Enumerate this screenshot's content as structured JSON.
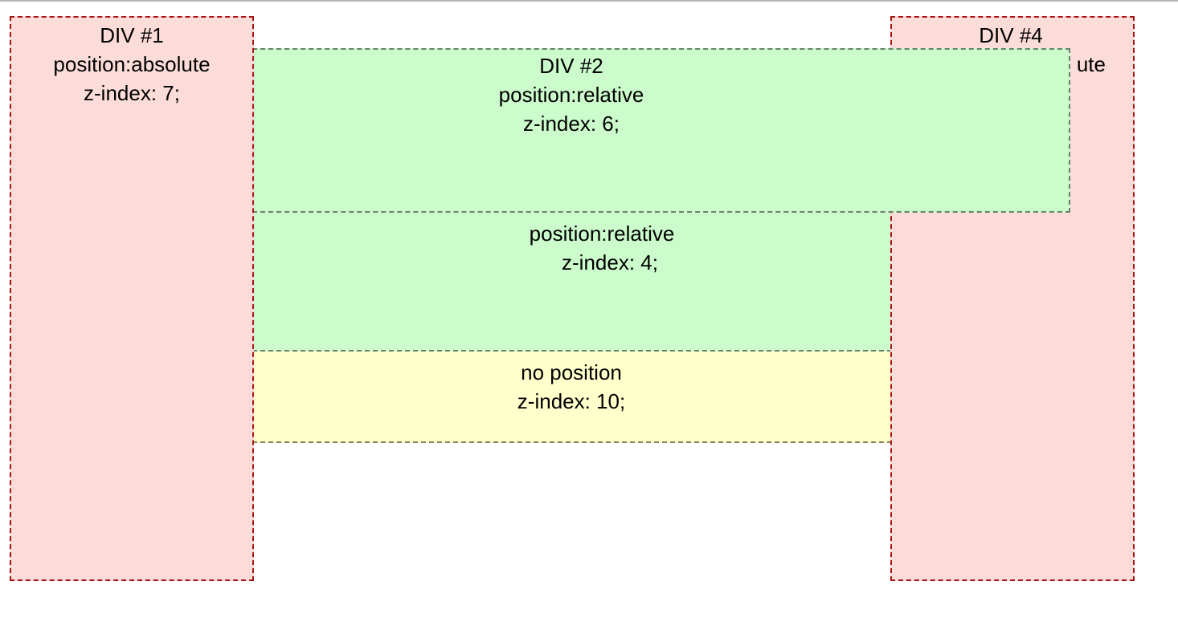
{
  "boxes": {
    "div1": {
      "title": "DIV #1",
      "position": "position:absolute",
      "zindex": "z-index: 7;"
    },
    "div2": {
      "title": "DIV #2",
      "position": "position:relative",
      "zindex": "z-index: 6;"
    },
    "div3": {
      "position": "position:relative",
      "zindex": "z-index: 4;"
    },
    "div4": {
      "title": "DIV #4",
      "position_visible": "ute"
    },
    "div5": {
      "position": "no position",
      "zindex": "z-index: 10;"
    }
  },
  "colors": {
    "pink_fill": "#fcdcd9",
    "pink_border": "#a31515",
    "green_fill": "#ccfccc",
    "green_border": "#6b7f6b",
    "yellow_fill": "#ffffcc",
    "yellow_border": "#808060"
  }
}
